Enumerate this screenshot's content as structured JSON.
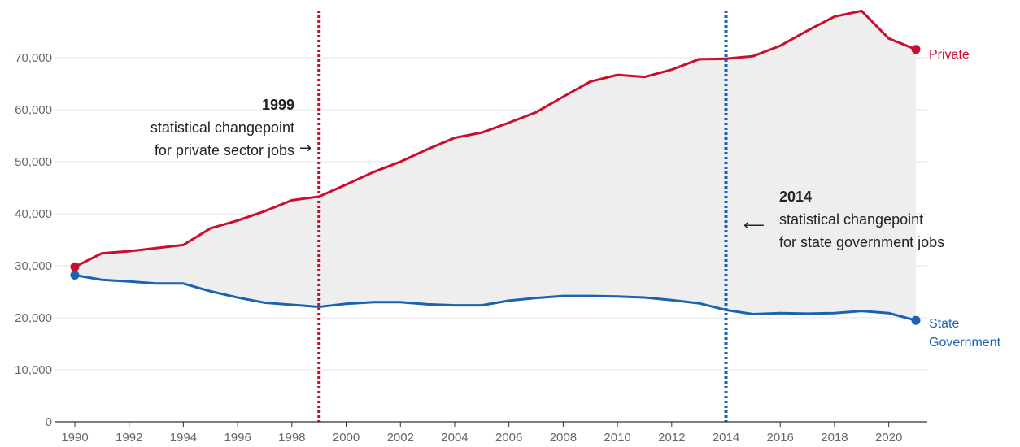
{
  "chart_data": {
    "type": "line",
    "title": "",
    "xlabel": "",
    "ylabel": "",
    "xlim": [
      1990,
      2021
    ],
    "ylim": [
      0,
      80000
    ],
    "grid": true,
    "x": [
      1990,
      1991,
      1992,
      1993,
      1994,
      1995,
      1996,
      1997,
      1998,
      1999,
      2000,
      2001,
      2002,
      2003,
      2004,
      2005,
      2006,
      2007,
      2008,
      2009,
      2010,
      2011,
      2012,
      2013,
      2014,
      2015,
      2016,
      2017,
      2018,
      2019,
      2020,
      2021
    ],
    "x_ticks": [
      1990,
      1992,
      1994,
      1996,
      1998,
      2000,
      2002,
      2004,
      2006,
      2008,
      2010,
      2012,
      2014,
      2016,
      2018,
      2020
    ],
    "x_tick_labels": [
      "1990",
      "1992",
      "1994",
      "1996",
      "1998",
      "2000",
      "2002",
      "2004",
      "2006",
      "2008",
      "2010",
      "2012",
      "2014",
      "2016",
      "2018",
      "2020"
    ],
    "y_ticks": [
      0,
      10000,
      20000,
      30000,
      40000,
      50000,
      60000,
      70000
    ],
    "y_tick_labels": [
      "0",
      "10,000",
      "20,000",
      "30,000",
      "40,000",
      "50,000",
      "60,000",
      "70,000"
    ],
    "series": [
      {
        "name": "Private",
        "color": "#c8102e",
        "values": [
          29800,
          32400,
          32800,
          33400,
          34000,
          37200,
          38700,
          40500,
          42600,
          43300,
          45600,
          48000,
          50000,
          52400,
          54600,
          55600,
          57500,
          59500,
          62500,
          65400,
          66700,
          66300,
          67700,
          69700,
          69800,
          70300,
          72300,
          75200,
          77900,
          79000,
          73700,
          71600
        ]
      },
      {
        "name": "State Government",
        "color": "#1a62b4",
        "label_lines": [
          "State",
          "Government"
        ],
        "values": [
          28200,
          27300,
          27000,
          26600,
          26600,
          25100,
          23900,
          22900,
          22500,
          22100,
          22700,
          23000,
          23000,
          22600,
          22400,
          22400,
          23300,
          23800,
          24200,
          24200,
          24100,
          23900,
          23400,
          22800,
          21500,
          20700,
          20900,
          20800,
          20900,
          21300,
          20900,
          19500
        ]
      }
    ],
    "fill_between": {
      "color": "#eeeeee"
    },
    "annotations": [
      {
        "x": 1999,
        "color": "#c8102e",
        "year_label": "1999",
        "line1": "statistical changepoint",
        "line2": "for private sector jobs",
        "arrow": "→"
      },
      {
        "x": 2014,
        "color": "#1a62b4",
        "year_label": "2014",
        "line1": "statistical changepoint",
        "line2": "for state government jobs",
        "arrow": "⟵"
      }
    ]
  }
}
